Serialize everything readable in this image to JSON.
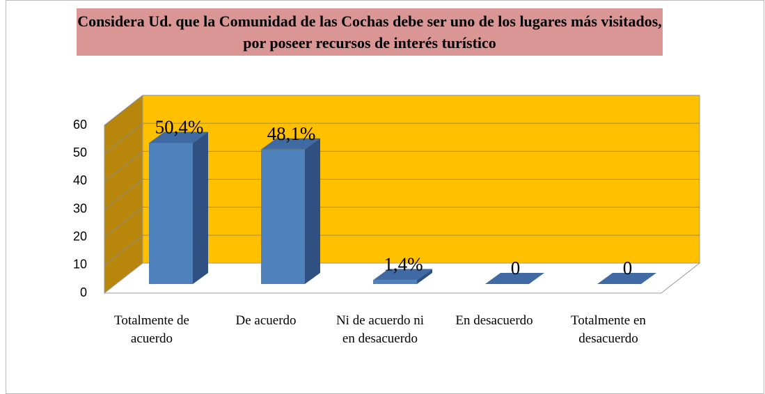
{
  "chart_data": {
    "type": "bar3d",
    "title": "Considera Ud. que la Comunidad de las Cochas debe ser uno de los lugares más visitados, por poseer recursos de interés turístico",
    "categories": [
      "Totalmente de acuerdo",
      "De acuerdo",
      "Ni de acuerdo ni en desacuerdo",
      "En desacuerdo",
      "Totalmente en desacuerdo"
    ],
    "values": [
      50.4,
      48.1,
      1.4,
      0,
      0
    ],
    "value_labels": [
      "50,4%",
      "48,1%",
      "1,4%",
      "0",
      "0"
    ],
    "color": "#4f81bd",
    "ylim": [
      0,
      60
    ],
    "yticks": [
      0,
      10,
      20,
      30,
      40,
      50,
      60
    ],
    "grid": true
  }
}
